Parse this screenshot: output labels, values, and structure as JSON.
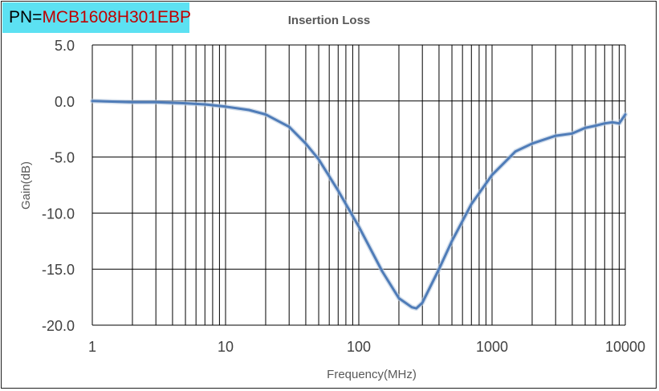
{
  "part_number": {
    "prefix": "PN=",
    "value": "MCB1608H301EBP"
  },
  "colors": {
    "badge_bg": "#5ce1f2",
    "part_number": "#c00000",
    "line": "#4f7cb8",
    "grid": "#000000"
  },
  "chart_data": {
    "type": "line",
    "title": "Insertion Loss",
    "xlabel": "Frequency(MHz)",
    "ylabel": "Gain(dB)",
    "x_scale": "log",
    "xlim": [
      1,
      10000
    ],
    "ylim": [
      -20,
      5
    ],
    "grid": true,
    "legend": "none",
    "x_ticks": [
      "1",
      "10",
      "100",
      "1000",
      "10000"
    ],
    "y_ticks": [
      "5.0",
      "0.0",
      "-5.0",
      "-10.0",
      "-15.0",
      "-20.0"
    ],
    "series": [
      {
        "x": [
          1,
          2,
          3,
          5,
          7,
          10,
          15,
          20,
          30,
          40,
          50,
          70,
          100,
          150,
          200,
          250,
          270,
          300,
          400,
          500,
          700,
          1000,
          1500,
          2000,
          3000,
          4000,
          5000,
          6000,
          7000,
          8000,
          9000,
          10000
        ],
        "y": [
          0,
          -0.1,
          -0.1,
          -0.2,
          -0.3,
          -0.5,
          -0.8,
          -1.2,
          -2.3,
          -3.8,
          -5.2,
          -8.0,
          -11.2,
          -15.2,
          -17.6,
          -18.4,
          -18.5,
          -18.0,
          -15.0,
          -12.5,
          -9.2,
          -6.6,
          -4.5,
          -3.8,
          -3.1,
          -2.9,
          -2.4,
          -2.2,
          -2.0,
          -1.9,
          -2.0,
          -1.2
        ]
      }
    ]
  }
}
